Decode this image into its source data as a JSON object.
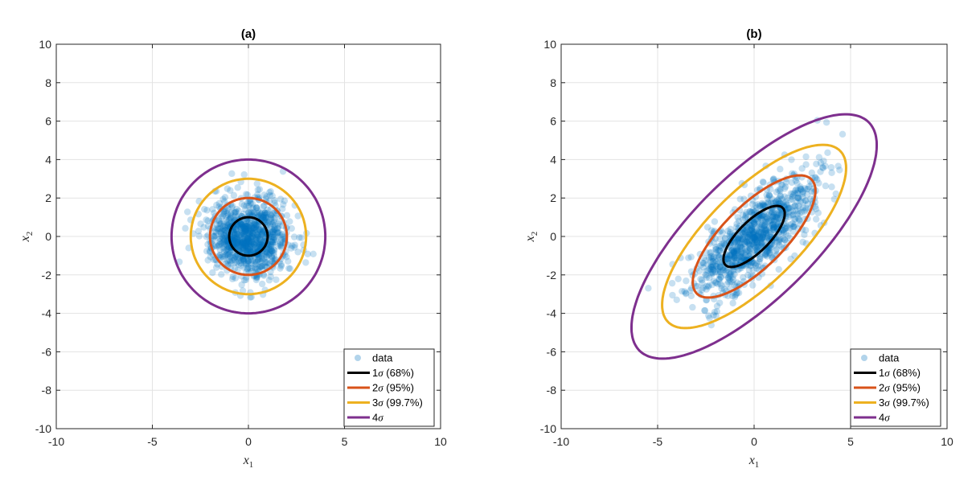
{
  "chart_data": [
    {
      "type": "scatter",
      "title": "(a)",
      "xlabel": {
        "base": "x",
        "sub": "1"
      },
      "ylabel": {
        "base": "x",
        "sub": "2"
      },
      "xlim": [
        -10,
        10
      ],
      "ylim": [
        -10,
        10
      ],
      "xticks": [
        -10,
        -5,
        0,
        5,
        10
      ],
      "yticks": [
        -10,
        -8,
        -6,
        -4,
        -2,
        0,
        2,
        4,
        6,
        8,
        10
      ],
      "grid": true,
      "legend_position": "bottom-right",
      "scatter_distribution": {
        "n_points": 1000,
        "mean": [
          0,
          0
        ],
        "cov": [
          [
            1,
            0
          ],
          [
            0,
            1
          ]
        ],
        "color": "#0072BD",
        "alpha": 0.22,
        "seed": 7
      },
      "series": [
        {
          "name": "data",
          "kind": "scatter",
          "color": "#0072BD"
        },
        {
          "label_num": "1",
          "label_suffix": " (68%)",
          "kind": "ellipse",
          "center": [
            0,
            0
          ],
          "semi_axes": [
            1,
            1
          ],
          "angle_deg": 0,
          "color": "#000000"
        },
        {
          "label_num": "2",
          "label_suffix": " (95%)",
          "kind": "ellipse",
          "center": [
            0,
            0
          ],
          "semi_axes": [
            2,
            2
          ],
          "angle_deg": 0,
          "color": "#D95319"
        },
        {
          "label_num": "3",
          "label_suffix": " (99.7%)",
          "kind": "ellipse",
          "center": [
            0,
            0
          ],
          "semi_axes": [
            3,
            3
          ],
          "angle_deg": 0,
          "color": "#EDB120"
        },
        {
          "label_num": "4",
          "label_suffix": "",
          "kind": "ellipse",
          "center": [
            0,
            0
          ],
          "semi_axes": [
            4,
            4
          ],
          "angle_deg": 0,
          "color": "#7E2F8E"
        }
      ]
    },
    {
      "type": "scatter",
      "title": "(b)",
      "xlabel": {
        "base": "x",
        "sub": "1"
      },
      "ylabel": {
        "base": "x",
        "sub": "2"
      },
      "xlim": [
        -10,
        10
      ],
      "ylim": [
        -10,
        10
      ],
      "xticks": [
        -10,
        -5,
        0,
        5,
        10
      ],
      "yticks": [
        -10,
        -8,
        -6,
        -4,
        -2,
        0,
        2,
        4,
        6,
        8,
        10
      ],
      "grid": true,
      "legend_position": "bottom-right",
      "scatter_distribution": {
        "n_points": 1000,
        "mean": [
          0,
          0
        ],
        "cov": [
          [
            2.5,
            1.9
          ],
          [
            1.9,
            2.5
          ]
        ],
        "color": "#0072BD",
        "alpha": 0.22,
        "seed": 11
      },
      "series": [
        {
          "name": "data",
          "kind": "scatter",
          "color": "#0072BD"
        },
        {
          "label_num": "1",
          "label_suffix": " (68%)",
          "kind": "ellipse",
          "center": [
            0,
            0
          ],
          "semi_axes": [
            2.1,
            0.8
          ],
          "angle_deg": 45,
          "color": "#000000"
        },
        {
          "label_num": "2",
          "label_suffix": " (95%)",
          "kind": "ellipse",
          "center": [
            0,
            0
          ],
          "semi_axes": [
            4.2,
            1.6
          ],
          "angle_deg": 45,
          "color": "#D95319"
        },
        {
          "label_num": "3",
          "label_suffix": " (99.7%)",
          "kind": "ellipse",
          "center": [
            0,
            0
          ],
          "semi_axes": [
            6.3,
            2.4
          ],
          "angle_deg": 45,
          "color": "#EDB120"
        },
        {
          "label_num": "4",
          "label_suffix": "",
          "kind": "ellipse",
          "center": [
            0,
            0
          ],
          "semi_axes": [
            8.4,
            3.2
          ],
          "angle_deg": 45,
          "color": "#7E2F8E"
        }
      ]
    }
  ]
}
